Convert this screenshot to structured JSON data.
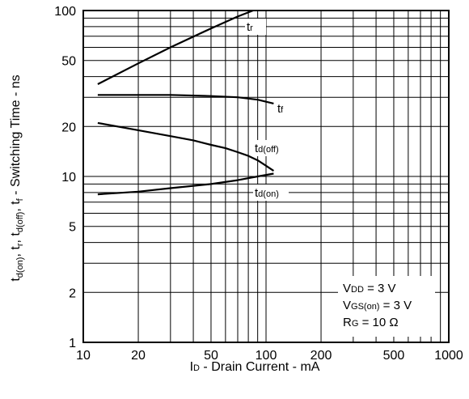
{
  "chart_data": {
    "type": "line",
    "x_scale": "log",
    "y_scale": "log",
    "xlim": [
      10,
      1000
    ],
    "ylim": [
      1,
      100
    ],
    "grid": true,
    "x_ticks": [
      {
        "value": 10,
        "label": "10"
      },
      {
        "value": 20,
        "label": "20"
      },
      {
        "value": 50,
        "label": "50"
      },
      {
        "value": 100,
        "label": "100"
      },
      {
        "value": 200,
        "label": "200"
      },
      {
        "value": 500,
        "label": "500"
      },
      {
        "value": 1000,
        "label": "1000"
      }
    ],
    "y_ticks": [
      {
        "value": 1,
        "label": "1"
      },
      {
        "value": 2,
        "label": "2"
      },
      {
        "value": 5,
        "label": "5"
      },
      {
        "value": 10,
        "label": "10"
      },
      {
        "value": 20,
        "label": "20"
      },
      {
        "value": 50,
        "label": "50"
      },
      {
        "value": 100,
        "label": "100"
      }
    ],
    "xlabel": {
      "main": "I",
      "sub": "D",
      "rest": " - Drain Current - mA"
    },
    "ylabel": "td(on), tr, td(off), tf - Switching Time - ns",
    "series": [
      {
        "name": "tr",
        "label_main": "t",
        "label_sub": "r",
        "x": [
          12,
          20,
          30,
          50,
          70,
          85
        ],
        "y": [
          36,
          48,
          60,
          78,
          92,
          100
        ]
      },
      {
        "name": "tf",
        "label_main": "t",
        "label_sub": "f",
        "x": [
          12,
          20,
          30,
          50,
          70,
          90,
          110
        ],
        "y": [
          31,
          31,
          31,
          30.5,
          30,
          29,
          27.5
        ]
      },
      {
        "name": "td(off)",
        "label_main": "t",
        "label_sub": "d(off)",
        "x": [
          12,
          20,
          30,
          40,
          50,
          60,
          70,
          80,
          90,
          100,
          110
        ],
        "y": [
          21,
          19,
          17.5,
          16.5,
          15.5,
          14.8,
          14,
          13.3,
          12.5,
          11.6,
          10.8
        ]
      },
      {
        "name": "td(on)",
        "label_main": "t",
        "label_sub": "d(on)",
        "x": [
          12,
          20,
          30,
          50,
          70,
          90,
          110
        ],
        "y": [
          7.8,
          8.1,
          8.5,
          9,
          9.5,
          10,
          10.4
        ]
      }
    ],
    "annotation": [
      {
        "main": "V",
        "sub": "DD",
        "rest": " = 3 V"
      },
      {
        "main": "V",
        "sub": "GS(on)",
        "rest": " = 3 V"
      },
      {
        "main": "R",
        "sub": "G",
        "rest": " = 10 Ω"
      }
    ]
  }
}
